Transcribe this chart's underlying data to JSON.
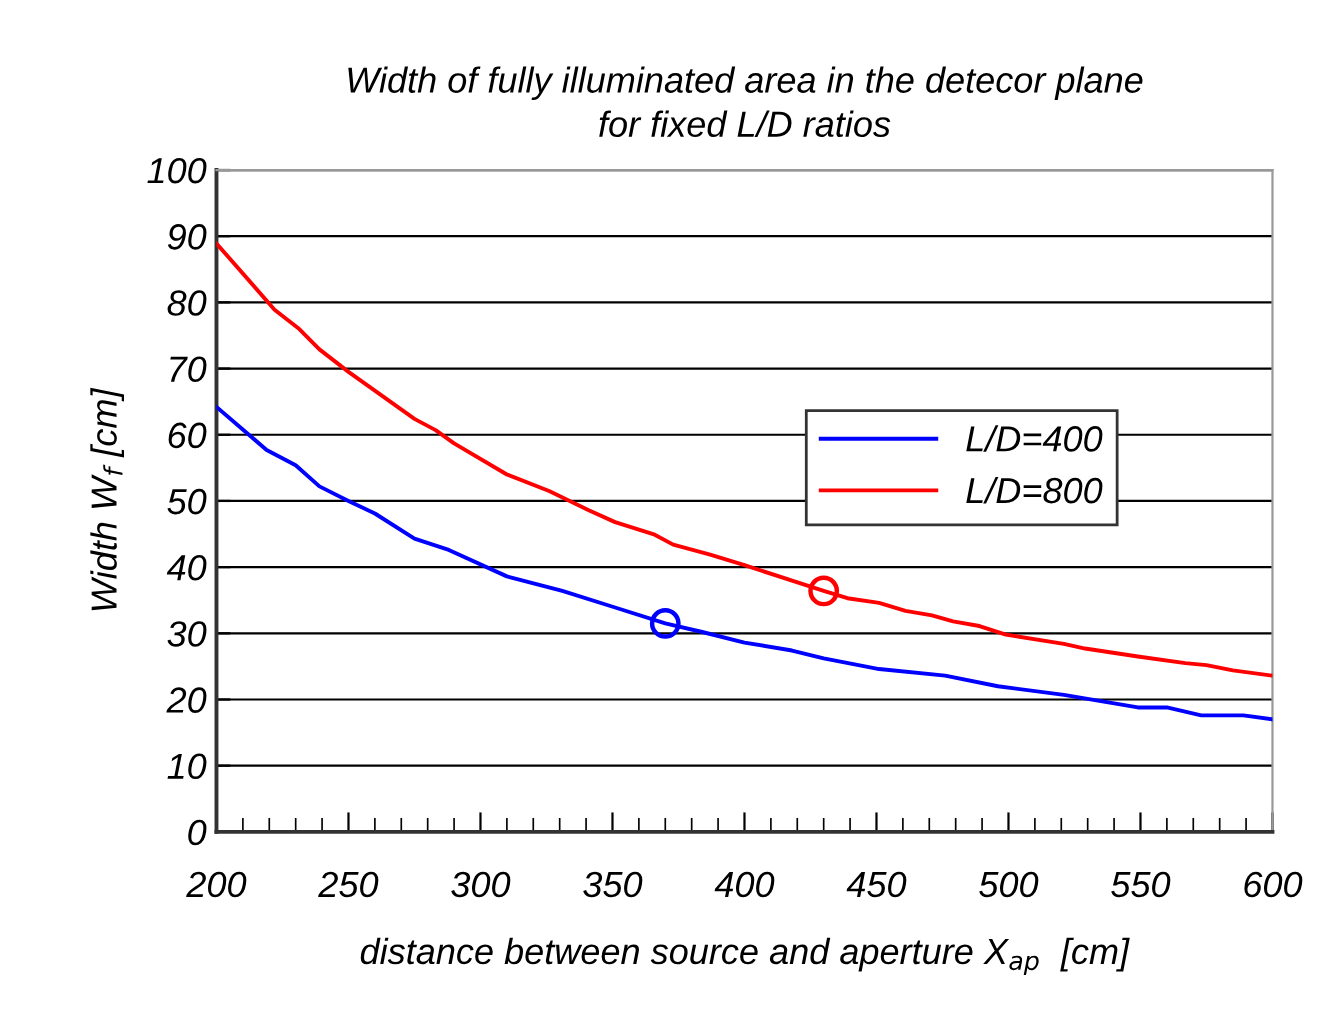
{
  "chart_data": {
    "type": "line",
    "title": "Width of fully illuminated area in the detecor plane\nfor fixed L/D ratios",
    "xlabel": "distance between source and aperture X$_{ap}$  [cm]",
    "ylabel": "Width W$_{f}$ [cm]",
    "xlim": [
      200,
      600
    ],
    "xticks": [
      200,
      250,
      300,
      350,
      400,
      450,
      500,
      550,
      600
    ],
    "ylim": [
      0,
      100
    ],
    "yticks": [
      0,
      10,
      20,
      30,
      40,
      50,
      60,
      70,
      80,
      90,
      100
    ],
    "grid": "y",
    "legend": "right",
    "marker": "none",
    "line_style": "solid",
    "series": [
      {
        "name": "L/D=400",
        "color": "#0000ff",
        "x": [
          200,
          219,
          230,
          239,
          250,
          260,
          275,
          288,
          310,
          331,
          351,
          370,
          384,
          400,
          418,
          430,
          451,
          476,
          496,
          521,
          549,
          560,
          573,
          589,
          600
        ],
        "values": [
          64.2,
          57.7,
          55.4,
          52.2,
          50,
          48.1,
          44.3,
          42.6,
          38.6,
          36.4,
          33.9,
          31.5,
          30.2,
          28.6,
          27.4,
          26.2,
          24.6,
          23.6,
          22,
          20.7,
          18.8,
          18.8,
          17.6,
          17.6,
          17
        ]
      },
      {
        "name": "L/D=800",
        "color": "#ff0000",
        "x": [
          200,
          222,
          231,
          239,
          250,
          275,
          283,
          290,
          310,
          326,
          341,
          351,
          366,
          373,
          387,
          400,
          430,
          439,
          451,
          461,
          471,
          479,
          489,
          499,
          521,
          529,
          549,
          567,
          575,
          585,
          600
        ],
        "values": [
          88.9,
          78.9,
          76.1,
          72.9,
          69.5,
          62.4,
          60.7,
          58.7,
          54,
          51.5,
          48.6,
          46.8,
          44.9,
          43.4,
          41.9,
          40.3,
          36.4,
          35.3,
          34.6,
          33.4,
          32.7,
          31.8,
          31.1,
          29.8,
          28.4,
          27.7,
          26.5,
          25.5,
          25.2,
          24.4,
          23.6
        ]
      },
      {
        "type": "scatter",
        "color": "#0000ff",
        "marker": "circle",
        "x": [
          370
        ],
        "values": [
          31.5
        ]
      },
      {
        "type": "scatter",
        "color": "#ff0000",
        "marker": "circle",
        "x": [
          430
        ],
        "values": [
          36.4
        ]
      }
    ]
  }
}
